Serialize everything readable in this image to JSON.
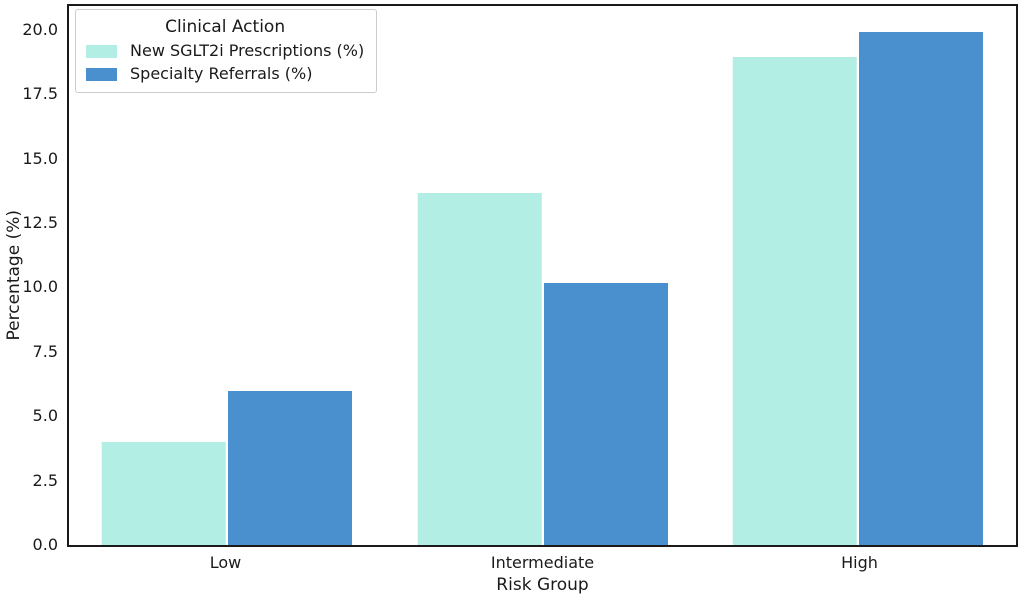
{
  "figure": {
    "background_color": "#ffffff",
    "spine_color": "#1a1a1a",
    "text_color": "#1a1a1a",
    "legend_border_color": "#cccccc"
  },
  "chart_data": {
    "type": "bar",
    "title": "",
    "xlabel": "Risk Group",
    "ylabel": "Percentage (%)",
    "categories": [
      "Low",
      "Intermediate",
      "High"
    ],
    "series": [
      {
        "name": "New SGLT2i Prescriptions (%)",
        "color": "#b2eee4",
        "values": [
          4.0,
          13.7,
          19.0
        ]
      },
      {
        "name": "Specialty Referrals (%)",
        "color": "#4a90cf",
        "values": [
          6.0,
          10.2,
          20.0
        ]
      }
    ],
    "ylim": [
      0,
      21
    ],
    "yticks": [
      0.0,
      2.5,
      5.0,
      7.5,
      10.0,
      12.5,
      15.0,
      17.5,
      20.0
    ],
    "ytick_decimals": 1,
    "grid": false,
    "legend": {
      "title": "Clinical Action",
      "position": "upper left"
    },
    "bar_band_fraction": 0.4
  }
}
